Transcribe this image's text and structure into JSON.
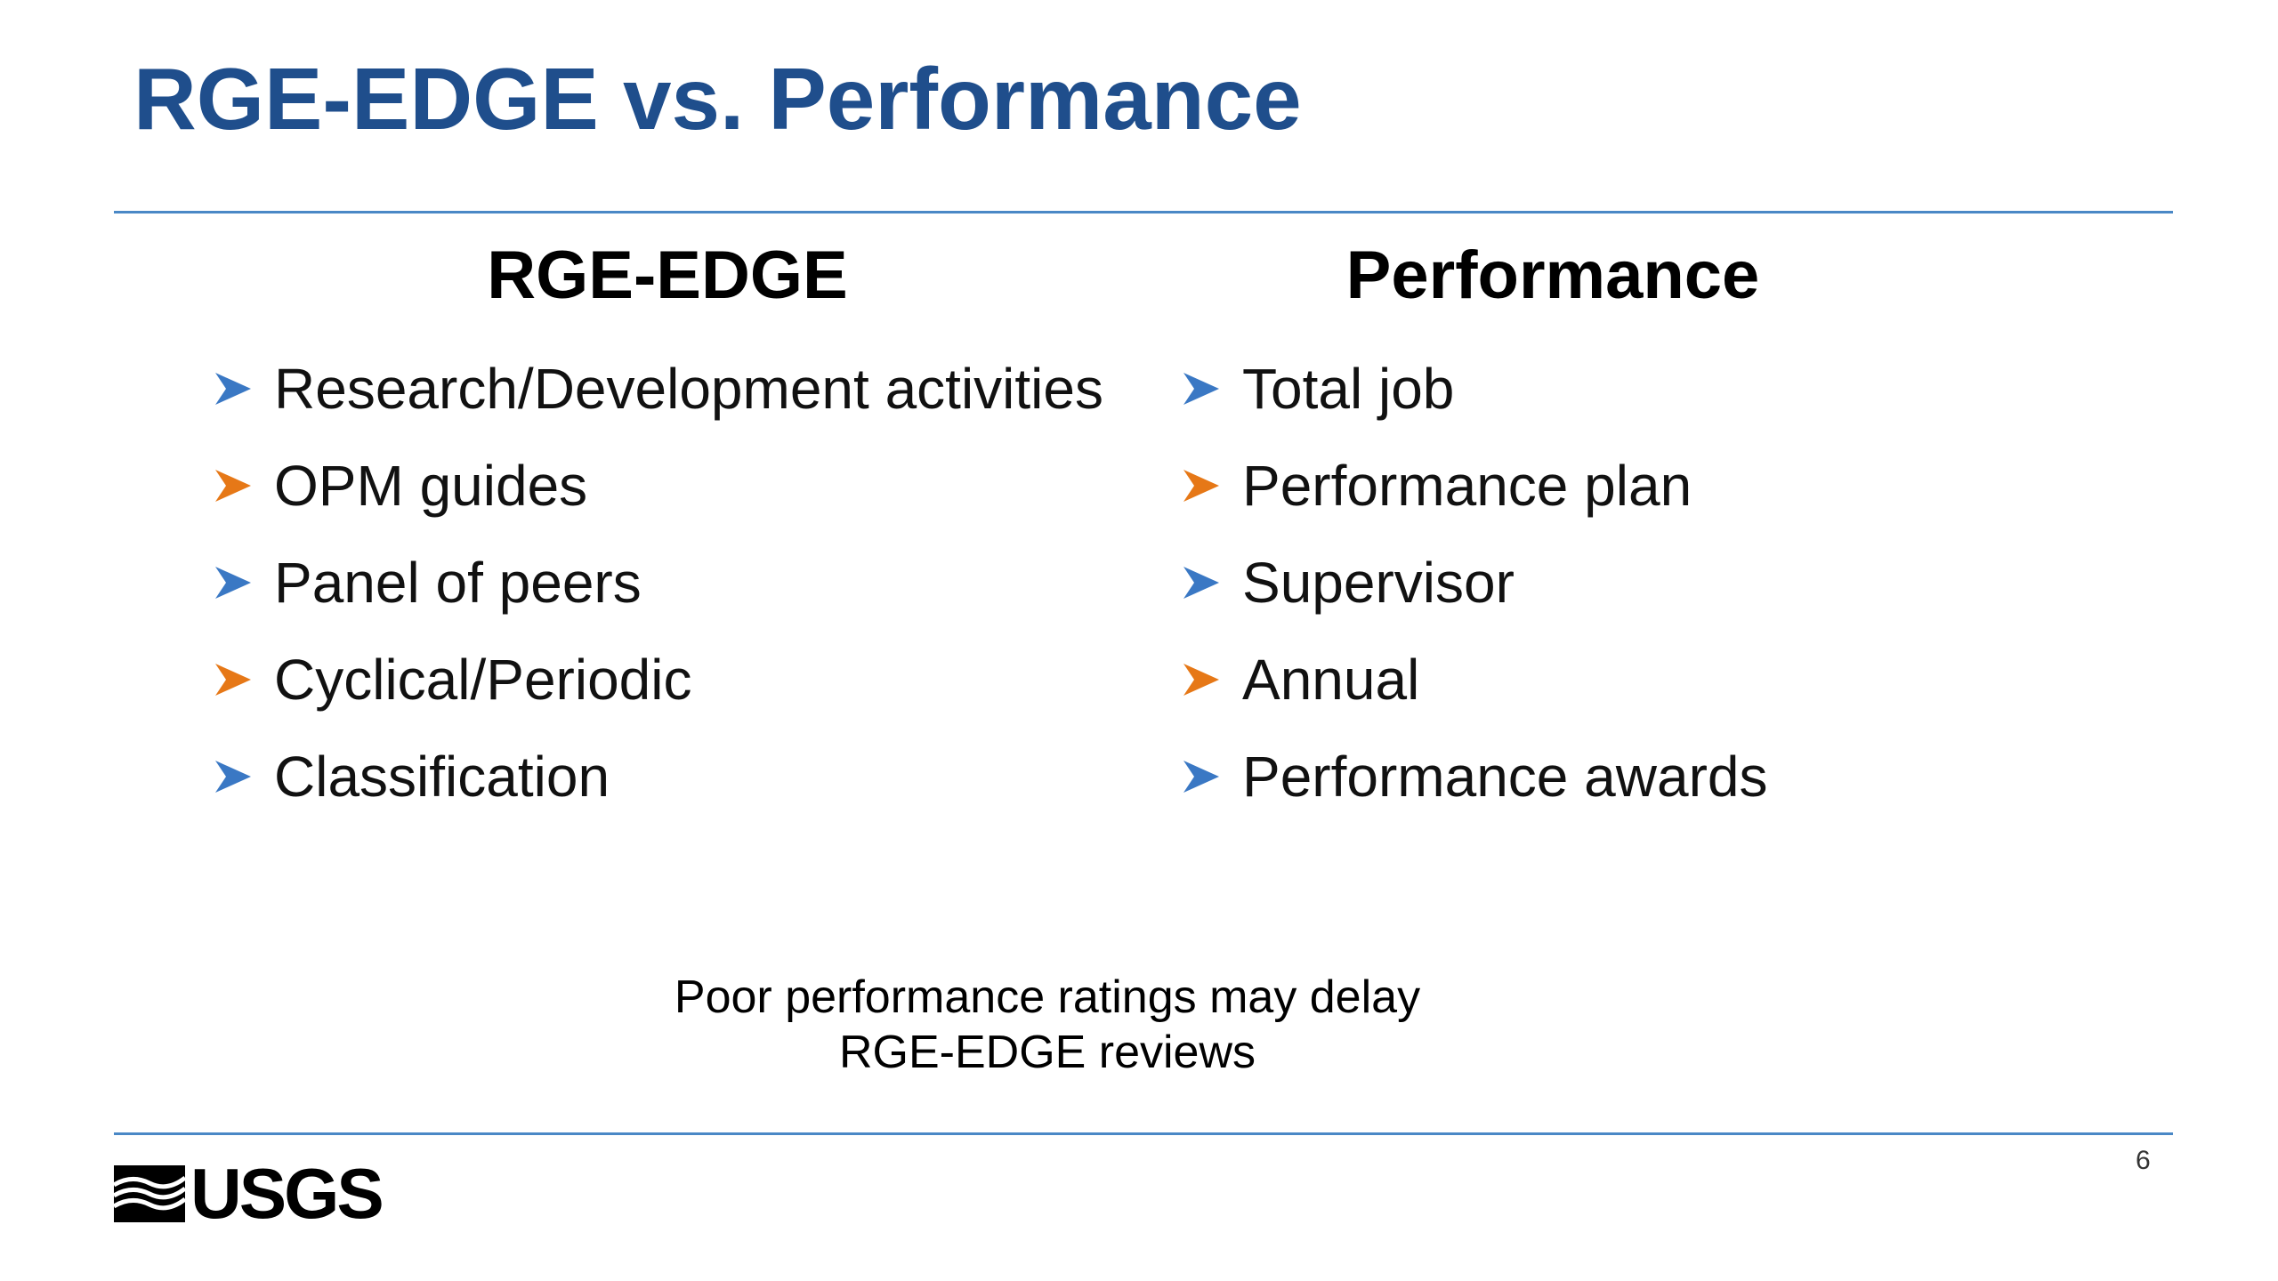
{
  "slide": {
    "title": "RGE-EDGE vs. Performance",
    "page_number": "6",
    "accent_color": "#1f4e8c",
    "rule_color": "#4a88c6"
  },
  "columns": {
    "left": {
      "heading": "RGE-EDGE",
      "items": [
        {
          "text": "Research/Development activities",
          "arrow_color": "#3a78c4"
        },
        {
          "text": "OPM guides",
          "arrow_color": "#e67817"
        },
        {
          "text": "Panel of peers",
          "arrow_color": "#3a78c4"
        },
        {
          "text": "Cyclical/Periodic",
          "arrow_color": "#e67817"
        },
        {
          "text": "Classification",
          "arrow_color": "#3a78c4"
        }
      ]
    },
    "right": {
      "heading": "Performance",
      "items": [
        {
          "text": "Total job",
          "arrow_color": "#3a78c4"
        },
        {
          "text": "Performance plan",
          "arrow_color": "#e67817"
        },
        {
          "text": "Supervisor",
          "arrow_color": "#3a78c4"
        },
        {
          "text": "Annual",
          "arrow_color": "#e67817"
        },
        {
          "text": "Performance awards",
          "arrow_color": "#3a78c4"
        }
      ]
    }
  },
  "footnote": {
    "line1": "Poor performance ratings may delay",
    "line2": "RGE-EDGE reviews"
  },
  "logo": {
    "text": "USGS",
    "icon": "usgs-wave-icon"
  }
}
